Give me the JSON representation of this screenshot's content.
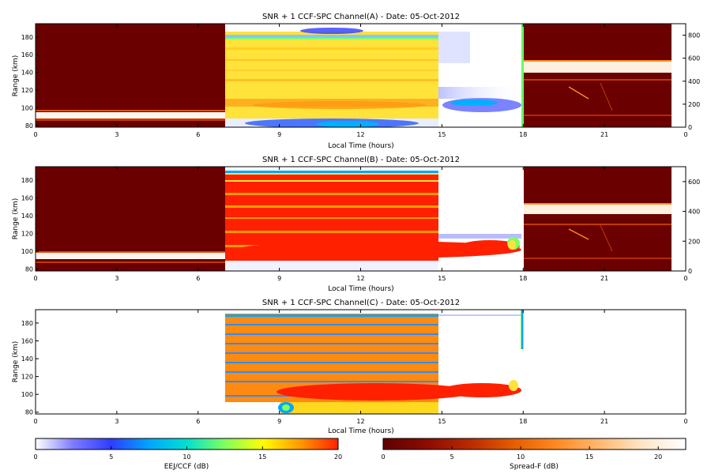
{
  "figure": {
    "panels": [
      {
        "title": "SNR + 1 CCF-SPC Channel(A) - Date: 05-Oct-2012",
        "xlabel": "Local Time (hours)",
        "ylabel": "Range (km)",
        "xticks": [
          "0",
          "3",
          "6",
          "9",
          "12",
          "15",
          "18",
          "21",
          "0"
        ],
        "yticks": [
          "80",
          "100",
          "120",
          "140",
          "160",
          "180"
        ],
        "right_yticks": [
          "0",
          "200",
          "400",
          "600",
          "800"
        ]
      },
      {
        "title": "SNR + 1 CCF-SPC Channel(B) - Date: 05-Oct-2012",
        "xlabel": "Local Time (hours)",
        "ylabel": "Range (km)",
        "xticks": [
          "0",
          "3",
          "6",
          "9",
          "12",
          "15",
          "18",
          "21",
          "0"
        ],
        "yticks": [
          "80",
          "100",
          "120",
          "140",
          "160",
          "180"
        ],
        "right_yticks": [
          "0",
          "200",
          "400",
          "600"
        ]
      },
      {
        "title": "SNR + 1 CCF-SPC Channel(C) - Date: 05-Oct-2012",
        "xlabel": "Local Time (hours)",
        "ylabel": "Range (km)",
        "xticks": [
          "0",
          "3",
          "6",
          "9",
          "12",
          "15",
          "18",
          "21",
          "0"
        ],
        "yticks": [
          "80",
          "100",
          "120",
          "140",
          "160",
          "180"
        ],
        "right_yticks": []
      }
    ],
    "colorbars": [
      {
        "label": "EEJ/CCF (dB)",
        "ticks": [
          "0",
          "5",
          "10",
          "15",
          "20"
        ],
        "range": [
          0,
          20
        ],
        "colormap": [
          "#ffffff",
          "#7b7bff",
          "#2f3cff",
          "#00a6ff",
          "#00e0d0",
          "#80ff60",
          "#ffff00",
          "#ff9a00",
          "#ff2000"
        ]
      },
      {
        "label": "Spread-F (dB)",
        "ticks": [
          "0",
          "5",
          "10",
          "15",
          "20"
        ],
        "range": [
          0,
          22
        ],
        "colormap": [
          "#600000",
          "#8a0c00",
          "#b82a00",
          "#e55c00",
          "#ff8a20",
          "#ffb870",
          "#ffe6c8",
          "#ffffff"
        ]
      }
    ]
  },
  "chart_data": [
    {
      "type": "heatmap",
      "title": "SNR + 1 CCF-SPC Channel(A) - Date: 05-Oct-2012",
      "xlabel": "Local Time (hours)",
      "ylabel": "Range (km)",
      "xlim": [
        0,
        24
      ],
      "ylim": [
        78,
        195
      ],
      "y2lim": [
        0,
        900
      ],
      "regions": [
        {
          "name": "night",
          "x": [
            0,
            7
          ],
          "colormap": "Spread-F",
          "description": "dark red background; bright band ~88-98 km"
        },
        {
          "name": "day",
          "x": [
            7,
            14.8
          ],
          "colormap": "EEJ/CCF",
          "description": "yellow-orange ~92-185 km; blue echoes near 80-90 km and ~190 km"
        },
        {
          "name": "afternoon",
          "x": [
            14.8,
            18
          ],
          "colormap": "EEJ/CCF",
          "description": "blue echoes near 100-112 km fading after 17 h"
        },
        {
          "name": "evening",
          "x": [
            18,
            23.5
          ],
          "colormap": "Spread-F",
          "description": "dark red with bright band near ~520-560 on right axis"
        }
      ]
    },
    {
      "type": "heatmap",
      "title": "SNR + 1 CCF-SPC Channel(B) - Date: 05-Oct-2012",
      "xlabel": "Local Time (hours)",
      "ylabel": "Range (km)",
      "xlim": [
        0,
        24
      ],
      "ylim": [
        78,
        195
      ],
      "y2lim": [
        0,
        700
      ],
      "regions": [
        {
          "name": "night",
          "x": [
            0,
            7
          ],
          "colormap": "Spread-F"
        },
        {
          "name": "day",
          "x": [
            7,
            14.8
          ],
          "colormap": "EEJ/CCF",
          "description": "red with orange striations; strong echo ~100-112 km"
        },
        {
          "name": "afternoon",
          "x": [
            14.8,
            18
          ],
          "colormap": "EEJ/CCF",
          "description": "red echo layer ~100-110 km to ~17.8 h"
        },
        {
          "name": "evening",
          "x": [
            18,
            23.5
          ],
          "colormap": "Spread-F"
        }
      ]
    },
    {
      "type": "heatmap",
      "title": "SNR + 1 CCF-SPC Channel(C) - Date: 05-Oct-2012",
      "xlabel": "Local Time (hours)",
      "ylabel": "Range (km)",
      "xlim": [
        0,
        24
      ],
      "ylim": [
        78,
        195
      ],
      "regions": [
        {
          "name": "day",
          "x": [
            7,
            14.8
          ],
          "colormap": "EEJ/CCF",
          "description": "orange with blue striations; red echo ~100-110 km"
        },
        {
          "name": "afternoon",
          "x": [
            14.8,
            17.9
          ],
          "colormap": "EEJ/CCF",
          "description": "red echo layer ~102-112 km"
        }
      ]
    }
  ]
}
